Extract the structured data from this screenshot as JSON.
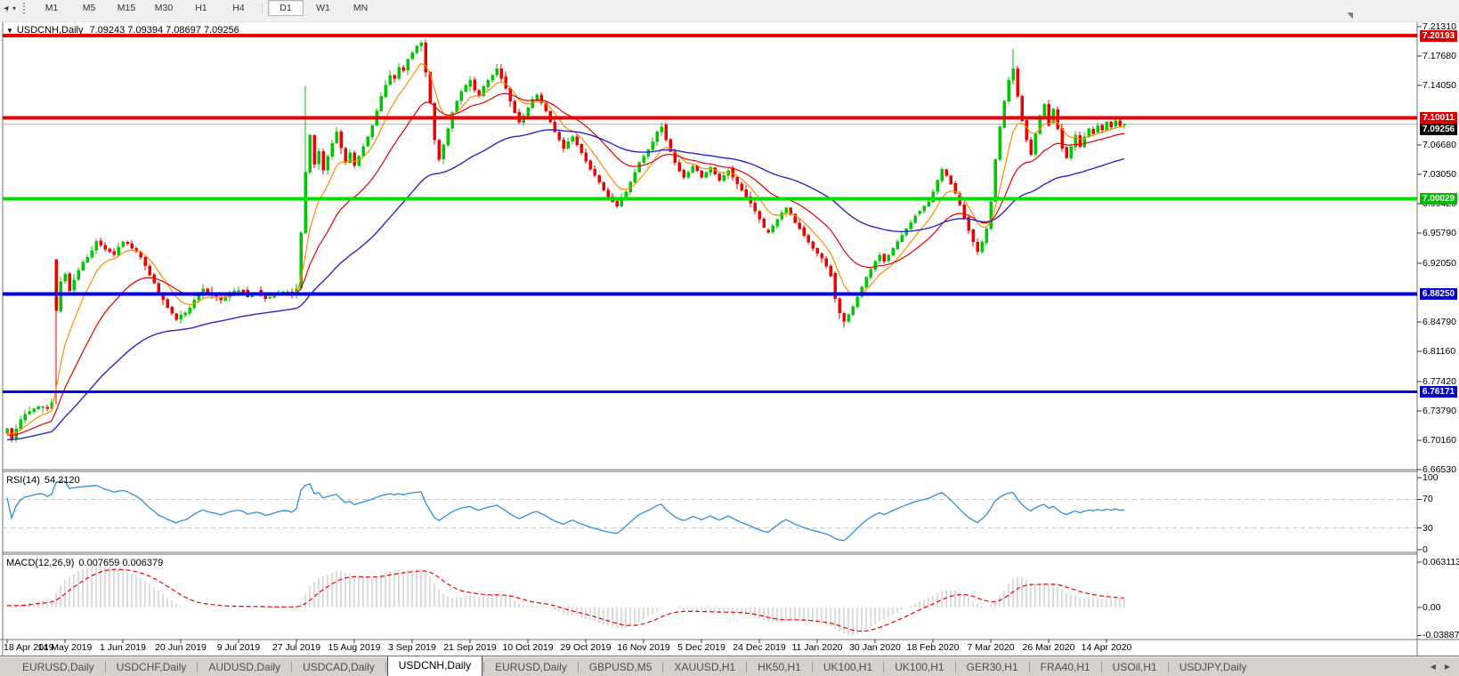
{
  "toolbar": {
    "timeframes": [
      "M1",
      "M5",
      "M15",
      "M30",
      "H1",
      "H4",
      "D1",
      "W1",
      "MN"
    ],
    "active_timeframe": "D1"
  },
  "icons": {
    "collapse_caret": "▼",
    "dropdown_caret": "▾",
    "cursor_tool": "➤",
    "scroll_to_end": "◥",
    "tab_scroll_left": "◀",
    "tab_scroll_right": "▶"
  },
  "chart": {
    "title_symbol": "USDCNH,Daily",
    "title_ohlc": "7.09243 7.09394 7.08697 7.09256"
  },
  "chart_data": {
    "type": "candlestick",
    "symbol": "USDCNH",
    "timeframe": "Daily",
    "last_bar": {
      "open": 7.09243,
      "high": 7.09394,
      "low": 7.08697,
      "close": 7.09256
    },
    "ylim": [
      6.6653,
      7.2197
    ],
    "y_ticks": [
      "7.21310",
      "7.17680",
      "7.14050",
      "7.06680",
      "7.03050",
      "6.99420",
      "6.95790",
      "6.92050",
      "6.84790",
      "6.81160",
      "6.77420",
      "6.73790",
      "6.70160",
      "6.66530"
    ],
    "x_ticks": {
      "labels": [
        "18 Apr 2019",
        "14 May 2019",
        "1 Jun 2019",
        "20 Jun 2019",
        "9 Jul 2019",
        "27 Jul 2019",
        "15 Aug 2019",
        "3 Sep 2019",
        "21 Sep 2019",
        "10 Oct 2019",
        "29 Oct 2019",
        "16 Nov 2019",
        "5 Dec 2019",
        "24 Dec 2019",
        "11 Jan 2020",
        "30 Jan 2020",
        "18 Feb 2020",
        "7 Mar 2020",
        "26 Mar 2020",
        "14 Apr 2020"
      ],
      "x_start": 8,
      "x_step": 65
    },
    "bars": {
      "count": 252,
      "x_start": 8,
      "x_step": 5,
      "body_width": 3,
      "up_color": "#00C800",
      "down_color": "#EE0000",
      "seed": 7,
      "prebars": 60,
      "pre_start": 6.688,
      "pre_end": 6.712
    },
    "price_path_anchors": [
      [
        0,
        6.716
      ],
      [
        1,
        6.703
      ],
      [
        3,
        6.727
      ],
      [
        5,
        6.737
      ],
      [
        7,
        6.743
      ],
      [
        9,
        6.741
      ],
      [
        10,
        6.748
      ],
      [
        11,
        6.862
      ],
      [
        12,
        6.898
      ],
      [
        13,
        6.907
      ],
      [
        14,
        6.887
      ],
      [
        16,
        6.912
      ],
      [
        18,
        6.928
      ],
      [
        20,
        6.948
      ],
      [
        22,
        6.938
      ],
      [
        24,
        6.931
      ],
      [
        26,
        6.947
      ],
      [
        28,
        6.939
      ],
      [
        30,
        6.928
      ],
      [
        32,
        6.906
      ],
      [
        34,
        6.882
      ],
      [
        36,
        6.866
      ],
      [
        38,
        6.851
      ],
      [
        40,
        6.859
      ],
      [
        42,
        6.875
      ],
      [
        44,
        6.889
      ],
      [
        46,
        6.881
      ],
      [
        48,
        6.875
      ],
      [
        50,
        6.883
      ],
      [
        52,
        6.887
      ],
      [
        54,
        6.879
      ],
      [
        56,
        6.883
      ],
      [
        58,
        6.877
      ],
      [
        60,
        6.881
      ],
      [
        62,
        6.885
      ],
      [
        64,
        6.883
      ],
      [
        65,
        6.889
      ],
      [
        66,
        6.958
      ],
      [
        67,
        7.033
      ],
      [
        68,
        7.079
      ],
      [
        69,
        7.043
      ],
      [
        70,
        7.059
      ],
      [
        71,
        7.036
      ],
      [
        72,
        7.053
      ],
      [
        73,
        7.069
      ],
      [
        74,
        7.083
      ],
      [
        75,
        7.063
      ],
      [
        76,
        7.045
      ],
      [
        77,
        7.057
      ],
      [
        78,
        7.041
      ],
      [
        79,
        7.053
      ],
      [
        80,
        7.065
      ],
      [
        81,
        7.077
      ],
      [
        82,
        7.091
      ],
      [
        83,
        7.109
      ],
      [
        84,
        7.127
      ],
      [
        85,
        7.141
      ],
      [
        86,
        7.153
      ],
      [
        87,
        7.149
      ],
      [
        88,
        7.163
      ],
      [
        89,
        7.159
      ],
      [
        90,
        7.173
      ],
      [
        91,
        7.181
      ],
      [
        92,
        7.189
      ],
      [
        93,
        7.193
      ],
      [
        94,
        7.157
      ],
      [
        95,
        7.119
      ],
      [
        96,
        7.073
      ],
      [
        97,
        7.049
      ],
      [
        98,
        7.067
      ],
      [
        99,
        7.087
      ],
      [
        100,
        7.107
      ],
      [
        101,
        7.121
      ],
      [
        102,
        7.133
      ],
      [
        103,
        7.141
      ],
      [
        104,
        7.147
      ],
      [
        105,
        7.135
      ],
      [
        106,
        7.127
      ],
      [
        107,
        7.139
      ],
      [
        108,
        7.147
      ],
      [
        109,
        7.153
      ],
      [
        110,
        7.161
      ],
      [
        111,
        7.149
      ],
      [
        112,
        7.137
      ],
      [
        113,
        7.121
      ],
      [
        114,
        7.107
      ],
      [
        115,
        7.095
      ],
      [
        116,
        7.103
      ],
      [
        117,
        7.113
      ],
      [
        118,
        7.123
      ],
      [
        119,
        7.129
      ],
      [
        120,
        7.119
      ],
      [
        121,
        7.109
      ],
      [
        122,
        7.095
      ],
      [
        123,
        7.083
      ],
      [
        124,
        7.073
      ],
      [
        125,
        7.063
      ],
      [
        126,
        7.071
      ],
      [
        127,
        7.077
      ],
      [
        128,
        7.067
      ],
      [
        129,
        7.057
      ],
      [
        130,
        7.047
      ],
      [
        131,
        7.037
      ],
      [
        132,
        7.029
      ],
      [
        133,
        7.021
      ],
      [
        134,
        7.011
      ],
      [
        135,
        7.003
      ],
      [
        136,
        6.997
      ],
      [
        137,
        6.991
      ],
      [
        138,
        6.999
      ],
      [
        139,
        7.009
      ],
      [
        140,
        7.021
      ],
      [
        141,
        7.033
      ],
      [
        142,
        7.045
      ],
      [
        143,
        7.053
      ],
      [
        144,
        7.061
      ],
      [
        145,
        7.071
      ],
      [
        146,
        7.083
      ],
      [
        147,
        7.089
      ],
      [
        148,
        7.073
      ],
      [
        149,
        7.059
      ],
      [
        150,
        7.045
      ],
      [
        151,
        7.035
      ],
      [
        152,
        7.027
      ],
      [
        153,
        7.033
      ],
      [
        154,
        7.041
      ],
      [
        155,
        7.035
      ],
      [
        156,
        7.027
      ],
      [
        157,
        7.033
      ],
      [
        158,
        7.039
      ],
      [
        159,
        7.031
      ],
      [
        160,
        7.023
      ],
      [
        161,
        7.029
      ],
      [
        162,
        7.035
      ],
      [
        163,
        7.027
      ],
      [
        164,
        7.019
      ],
      [
        165,
        7.011
      ],
      [
        166,
        7.003
      ],
      [
        167,
        6.995
      ],
      [
        168,
        6.985
      ],
      [
        169,
        6.975
      ],
      [
        170,
        6.965
      ],
      [
        171,
        6.959
      ],
      [
        172,
        6.967
      ],
      [
        173,
        6.975
      ],
      [
        174,
        6.983
      ],
      [
        175,
        6.989
      ],
      [
        176,
        6.981
      ],
      [
        177,
        6.971
      ],
      [
        178,
        6.963
      ],
      [
        179,
        6.955
      ],
      [
        180,
        6.947
      ],
      [
        181,
        6.939
      ],
      [
        182,
        6.933
      ],
      [
        183,
        6.927
      ],
      [
        184,
        6.917
      ],
      [
        185,
        6.905
      ],
      [
        186,
        6.877
      ],
      [
        187,
        6.859
      ],
      [
        188,
        6.849
      ],
      [
        189,
        6.857
      ],
      [
        190,
        6.867
      ],
      [
        191,
        6.879
      ],
      [
        192,
        6.891
      ],
      [
        193,
        6.903
      ],
      [
        194,
        6.913
      ],
      [
        195,
        6.923
      ],
      [
        196,
        6.931
      ],
      [
        197,
        6.923
      ],
      [
        198,
        6.931
      ],
      [
        199,
        6.939
      ],
      [
        200,
        6.947
      ],
      [
        201,
        6.955
      ],
      [
        202,
        6.963
      ],
      [
        203,
        6.971
      ],
      [
        204,
        6.979
      ],
      [
        205,
        6.985
      ],
      [
        206,
        6.991
      ],
      [
        207,
        6.997
      ],
      [
        208,
        7.009
      ],
      [
        209,
        7.023
      ],
      [
        210,
        7.037
      ],
      [
        211,
        7.029
      ],
      [
        212,
        7.019
      ],
      [
        213,
        7.007
      ],
      [
        214,
        6.993
      ],
      [
        215,
        6.977
      ],
      [
        216,
        6.961
      ],
      [
        217,
        6.947
      ],
      [
        218,
        6.935
      ],
      [
        219,
        6.947
      ],
      [
        220,
        6.963
      ],
      [
        221,
        6.997
      ],
      [
        222,
        7.049
      ],
      [
        223,
        7.089
      ],
      [
        224,
        7.121
      ],
      [
        225,
        7.147
      ],
      [
        226,
        7.161
      ],
      [
        227,
        7.127
      ],
      [
        228,
        7.097
      ],
      [
        229,
        7.073
      ],
      [
        230,
        7.055
      ],
      [
        231,
        7.081
      ],
      [
        232,
        7.103
      ],
      [
        233,
        7.117
      ],
      [
        234,
        7.091
      ],
      [
        235,
        7.111
      ],
      [
        236,
        7.087
      ],
      [
        237,
        7.063
      ],
      [
        238,
        7.051
      ],
      [
        239,
        7.065
      ],
      [
        240,
        7.079
      ],
      [
        241,
        7.065
      ],
      [
        242,
        7.077
      ],
      [
        243,
        7.087
      ],
      [
        244,
        7.081
      ],
      [
        245,
        7.091
      ],
      [
        246,
        7.085
      ],
      [
        247,
        7.095
      ],
      [
        248,
        7.089
      ],
      [
        249,
        7.097
      ],
      [
        250,
        7.091
      ],
      [
        251,
        7.09256
      ]
    ],
    "forced_bars": {
      "11": {
        "open": 6.925
      },
      "67": {
        "high": 7.14
      },
      "93": {
        "high": 7.1962
      },
      "188": {
        "low": 6.8407
      },
      "226": {
        "high": 7.1855
      },
      "251": {
        "open": 7.09243,
        "high": 7.09394,
        "low": 7.08697,
        "close": 7.09256
      }
    },
    "moving_averages": [
      {
        "period": 8,
        "color": "#FF8C00",
        "width": 1.2
      },
      {
        "period": 21,
        "color": "#E00000",
        "width": 1.2
      },
      {
        "period": 55,
        "color": "#2828C8",
        "width": 1.4
      }
    ],
    "levels": [
      {
        "price": 7.20193,
        "color": "#EE0000",
        "width": 4,
        "label": "7.20193",
        "badge": "#DD0000"
      },
      {
        "price": 7.10011,
        "color": "#EE0000",
        "width": 4,
        "label": "7.10011",
        "badge": "#DD0000"
      },
      {
        "price": 7.00029,
        "color": "#00DD00",
        "width": 4,
        "label": "7.00029",
        "badge": "#00BB00"
      },
      {
        "price": 6.8825,
        "color": "#0000F0",
        "width": 4,
        "label": "6.88250",
        "badge": "#0000D0"
      },
      {
        "price": 6.76171,
        "color": "#0000F0",
        "width": 3,
        "label": "6.76171",
        "badge": "#0000D0"
      }
    ],
    "current_price": {
      "value": 7.09256,
      "label": "7.09256",
      "line_color": "#BBBBBB",
      "badge": "#000000"
    },
    "rsi": {
      "label": "RSI(14)",
      "value": "54.2120",
      "period": 14,
      "color": "#2E8FD8",
      "level_lines": [
        70,
        30
      ],
      "level_color": "#C8C8C8",
      "scale": [
        {
          "v": 100,
          "label": "100"
        },
        {
          "v": 70,
          "label": "70"
        },
        {
          "v": 30,
          "label": "30"
        },
        {
          "v": 0,
          "label": "0"
        }
      ],
      "ylim": [
        -3.7,
        107.4
      ]
    },
    "macd": {
      "label": "MACD(12,26,9)",
      "value": "0.007659 0.006379",
      "fast": 12,
      "slow": 26,
      "signal_period": 9,
      "hist_color": "#BBBBBB",
      "signal_color": "#EE0000",
      "scale": [
        {
          "v": 0.063113,
          "label": "0.063113"
        },
        {
          "v": 0.0,
          "label": "0.00"
        },
        {
          "v": -0.038872,
          "label": "-0.038872"
        }
      ],
      "ylim": [
        -0.04455,
        0.07302
      ]
    }
  },
  "tabs": {
    "items": [
      "EURUSD,Daily",
      "USDCHF,Daily",
      "AUDUSD,Daily",
      "USDCAD,Daily",
      "USDCNH,Daily",
      "EURUSD,Daily",
      "GBPUSD,M5",
      "XAUUSD,H1",
      "HK50,H1",
      "UK100,H1",
      "UK100,H1",
      "GER30,H1",
      "FRA40,H1",
      "USOil,H1",
      "USDJPY,Daily"
    ],
    "active_index": 4
  }
}
